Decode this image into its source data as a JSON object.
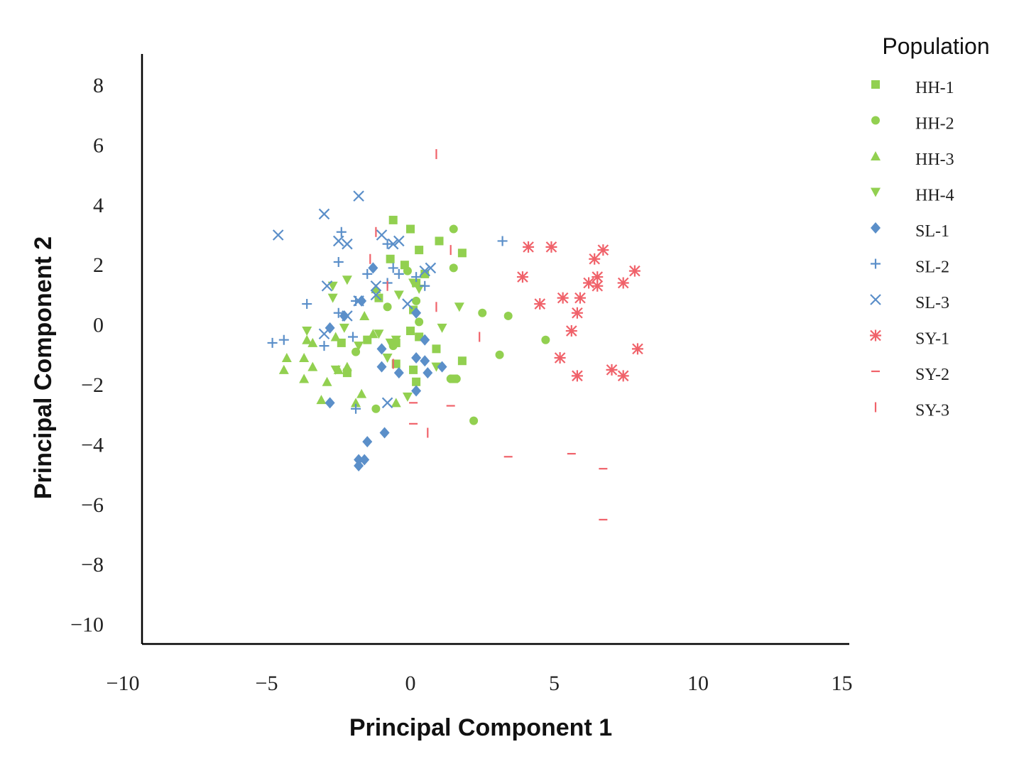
{
  "chart_data": {
    "type": "scatter",
    "xlabel": "Principal Component 1",
    "ylabel": "Principal Component 2",
    "xlim": [
      -10,
      15
    ],
    "ylim": [
      -10,
      8
    ],
    "x_ticks": [
      "−10",
      "−5",
      "0",
      "5",
      "10",
      "15"
    ],
    "y_ticks": [
      "8",
      "6",
      "4",
      "2",
      "0",
      "−2",
      "−4",
      "−6",
      "−8",
      "−10"
    ],
    "grid": false,
    "legend": {
      "title": "Population",
      "position": "right"
    },
    "series": [
      {
        "name": "HH-1",
        "marker": "square",
        "color": "#92d050",
        "points": [
          [
            -0.6,
            3.5
          ],
          [
            0,
            3.2
          ],
          [
            1,
            2.8
          ],
          [
            1.8,
            2.4
          ],
          [
            0.3,
            2.5
          ],
          [
            -0.2,
            2
          ],
          [
            0.2,
            1.4
          ],
          [
            -0.7,
            2.2
          ],
          [
            0.5,
            1.7
          ],
          [
            0.1,
            0.5
          ],
          [
            -1.1,
            0.9
          ],
          [
            0,
            -0.2
          ],
          [
            0.3,
            -0.4
          ],
          [
            0.9,
            -0.8
          ],
          [
            1.8,
            -1.2
          ],
          [
            0.1,
            -1.5
          ],
          [
            -0.5,
            -0.6
          ],
          [
            -1.5,
            -0.5
          ],
          [
            -2.4,
            -0.6
          ],
          [
            0.2,
            -1.9
          ],
          [
            -0.5,
            -1.3
          ],
          [
            1.5,
            -1.8
          ],
          [
            -2.2,
            -1.6
          ]
        ]
      },
      {
        "name": "HH-2",
        "marker": "circle",
        "color": "#92d050",
        "points": [
          [
            1.5,
            3.2
          ],
          [
            1.5,
            1.9
          ],
          [
            -0.1,
            1.8
          ],
          [
            0.2,
            0.8
          ],
          [
            -0.8,
            0.6
          ],
          [
            2.5,
            0.4
          ],
          [
            3.4,
            0.3
          ],
          [
            4.7,
            -0.5
          ],
          [
            3.1,
            -1
          ],
          [
            1.4,
            -1.8
          ],
          [
            1.6,
            -1.8
          ],
          [
            2.2,
            -3.2
          ],
          [
            -1.2,
            -2.8
          ],
          [
            0.3,
            0.1
          ],
          [
            -1.9,
            -0.9
          ],
          [
            -0.6,
            -0.7
          ]
        ]
      },
      {
        "name": "HH-3",
        "marker": "triangle-up",
        "color": "#92d050",
        "points": [
          [
            -4.4,
            -1.5
          ],
          [
            -4.3,
            -1.1
          ],
          [
            -3.7,
            -1.8
          ],
          [
            -3.7,
            -1.1
          ],
          [
            -3.4,
            -1.4
          ],
          [
            -3.4,
            -0.6
          ],
          [
            -3.1,
            -2.5
          ],
          [
            -2.9,
            -1.9
          ],
          [
            -2.5,
            -1.5
          ],
          [
            -2.2,
            -1.4
          ],
          [
            -1.9,
            -2.6
          ],
          [
            -1.7,
            -2.3
          ],
          [
            -1.6,
            0.3
          ],
          [
            -1.3,
            -0.3
          ],
          [
            -1.2,
            1.2
          ],
          [
            -0.5,
            -2.6
          ],
          [
            -3.6,
            -0.5
          ],
          [
            -2.6,
            -0.4
          ]
        ]
      },
      {
        "name": "HH-4",
        "marker": "triangle-down",
        "color": "#92d050",
        "points": [
          [
            -3.6,
            -0.2
          ],
          [
            -2.7,
            0.9
          ],
          [
            -2.3,
            -0.1
          ],
          [
            -2.2,
            1.5
          ],
          [
            -2.7,
            1.3
          ],
          [
            -1.8,
            -0.7
          ],
          [
            -1.1,
            -0.3
          ],
          [
            -0.8,
            -1.1
          ],
          [
            -0.5,
            -0.5
          ],
          [
            0.1,
            1.4
          ],
          [
            0.3,
            1.2
          ],
          [
            1.7,
            0.6
          ],
          [
            1.1,
            -0.1
          ],
          [
            -0.1,
            -2.4
          ],
          [
            -2.6,
            -1.5
          ],
          [
            -0.7,
            -0.6
          ],
          [
            0.9,
            -1.4
          ],
          [
            -0.4,
            1
          ]
        ]
      },
      {
        "name": "SL-1",
        "marker": "diamond",
        "color": "#5b8fc9",
        "points": [
          [
            -1.3,
            1.9
          ],
          [
            -1.7,
            0.8
          ],
          [
            -2.8,
            -0.1
          ],
          [
            -2.3,
            0.3
          ],
          [
            -1,
            -0.8
          ],
          [
            0.5,
            -0.5
          ],
          [
            0.2,
            0.4
          ],
          [
            0.2,
            -1.1
          ],
          [
            0.5,
            -1.2
          ],
          [
            0.6,
            -1.6
          ],
          [
            1.1,
            -1.4
          ],
          [
            -0.4,
            -1.6
          ],
          [
            -1,
            -1.4
          ],
          [
            0.2,
            -2.2
          ],
          [
            -2.8,
            -2.6
          ],
          [
            -1.5,
            -3.9
          ],
          [
            -0.9,
            -3.6
          ],
          [
            -1.8,
            -4.5
          ],
          [
            -1.6,
            -4.5
          ],
          [
            -1.8,
            -4.7
          ]
        ]
      },
      {
        "name": "SL-2",
        "marker": "plus",
        "color": "#5b8fc9",
        "points": [
          [
            -4.8,
            -0.6
          ],
          [
            -4.4,
            -0.5
          ],
          [
            -3.6,
            0.7
          ],
          [
            -3,
            -0.7
          ],
          [
            -2.5,
            2.1
          ],
          [
            -2.4,
            3.1
          ],
          [
            -1.9,
            0.8
          ],
          [
            -1.5,
            1.7
          ],
          [
            -0.8,
            2.7
          ],
          [
            -0.6,
            1.9
          ],
          [
            -0.4,
            1.7
          ],
          [
            0.2,
            1.6
          ],
          [
            0.5,
            1.3
          ],
          [
            3.2,
            2.8
          ],
          [
            -2,
            -0.4
          ],
          [
            -1.9,
            -2.8
          ],
          [
            -0.8,
            1.4
          ],
          [
            -2.5,
            0.4
          ]
        ]
      },
      {
        "name": "SL-3",
        "marker": "x",
        "color": "#5b8fc9",
        "points": [
          [
            -4.6,
            3
          ],
          [
            -3,
            3.7
          ],
          [
            -1.8,
            4.3
          ],
          [
            -2.5,
            2.8
          ],
          [
            -2.2,
            2.7
          ],
          [
            -1,
            3
          ],
          [
            -0.6,
            2.7
          ],
          [
            -0.4,
            2.8
          ],
          [
            0.5,
            1.8
          ],
          [
            0.7,
            1.9
          ],
          [
            -1.2,
            1.3
          ],
          [
            -1.2,
            1
          ],
          [
            -2.9,
            1.3
          ],
          [
            -2.2,
            0.3
          ],
          [
            -3,
            -0.3
          ],
          [
            -0.8,
            -2.6
          ],
          [
            -0.1,
            0.7
          ],
          [
            -1.8,
            0.8
          ]
        ]
      },
      {
        "name": "SY-1",
        "marker": "asterisk",
        "color": "#f0626a",
        "points": [
          [
            4.1,
            2.6
          ],
          [
            4.9,
            2.6
          ],
          [
            6.4,
            2.2
          ],
          [
            6.7,
            2.5
          ],
          [
            3.9,
            1.6
          ],
          [
            6.5,
            1.6
          ],
          [
            6.5,
            1.3
          ],
          [
            6.2,
            1.4
          ],
          [
            7.8,
            1.8
          ],
          [
            7.4,
            1.4
          ],
          [
            5.3,
            0.9
          ],
          [
            5.9,
            0.9
          ],
          [
            4.5,
            0.7
          ],
          [
            5.8,
            0.4
          ],
          [
            5.6,
            -0.2
          ],
          [
            5.2,
            -1.1
          ],
          [
            5.8,
            -1.7
          ],
          [
            7,
            -1.5
          ],
          [
            7.4,
            -1.7
          ],
          [
            7.9,
            -0.8
          ]
        ]
      },
      {
        "name": "SY-2",
        "marker": "dash",
        "color": "#f0626a",
        "points": [
          [
            0.1,
            -2.6
          ],
          [
            0.1,
            -3.3
          ],
          [
            1.4,
            -2.7
          ],
          [
            3.4,
            -4.4
          ],
          [
            5.6,
            -4.3
          ],
          [
            6.7,
            -4.8
          ],
          [
            6.7,
            -6.5
          ]
        ]
      },
      {
        "name": "SY-3",
        "marker": "vbar",
        "color": "#f0626a",
        "points": [
          [
            0.9,
            5.7
          ],
          [
            -1.2,
            3.1
          ],
          [
            -1.4,
            2.2
          ],
          [
            1.4,
            2.5
          ],
          [
            -0.8,
            1.3
          ],
          [
            0.9,
            0.6
          ],
          [
            2.4,
            -0.4
          ],
          [
            0.6,
            -3.6
          ],
          [
            -0.6,
            -1.3
          ]
        ]
      }
    ]
  }
}
